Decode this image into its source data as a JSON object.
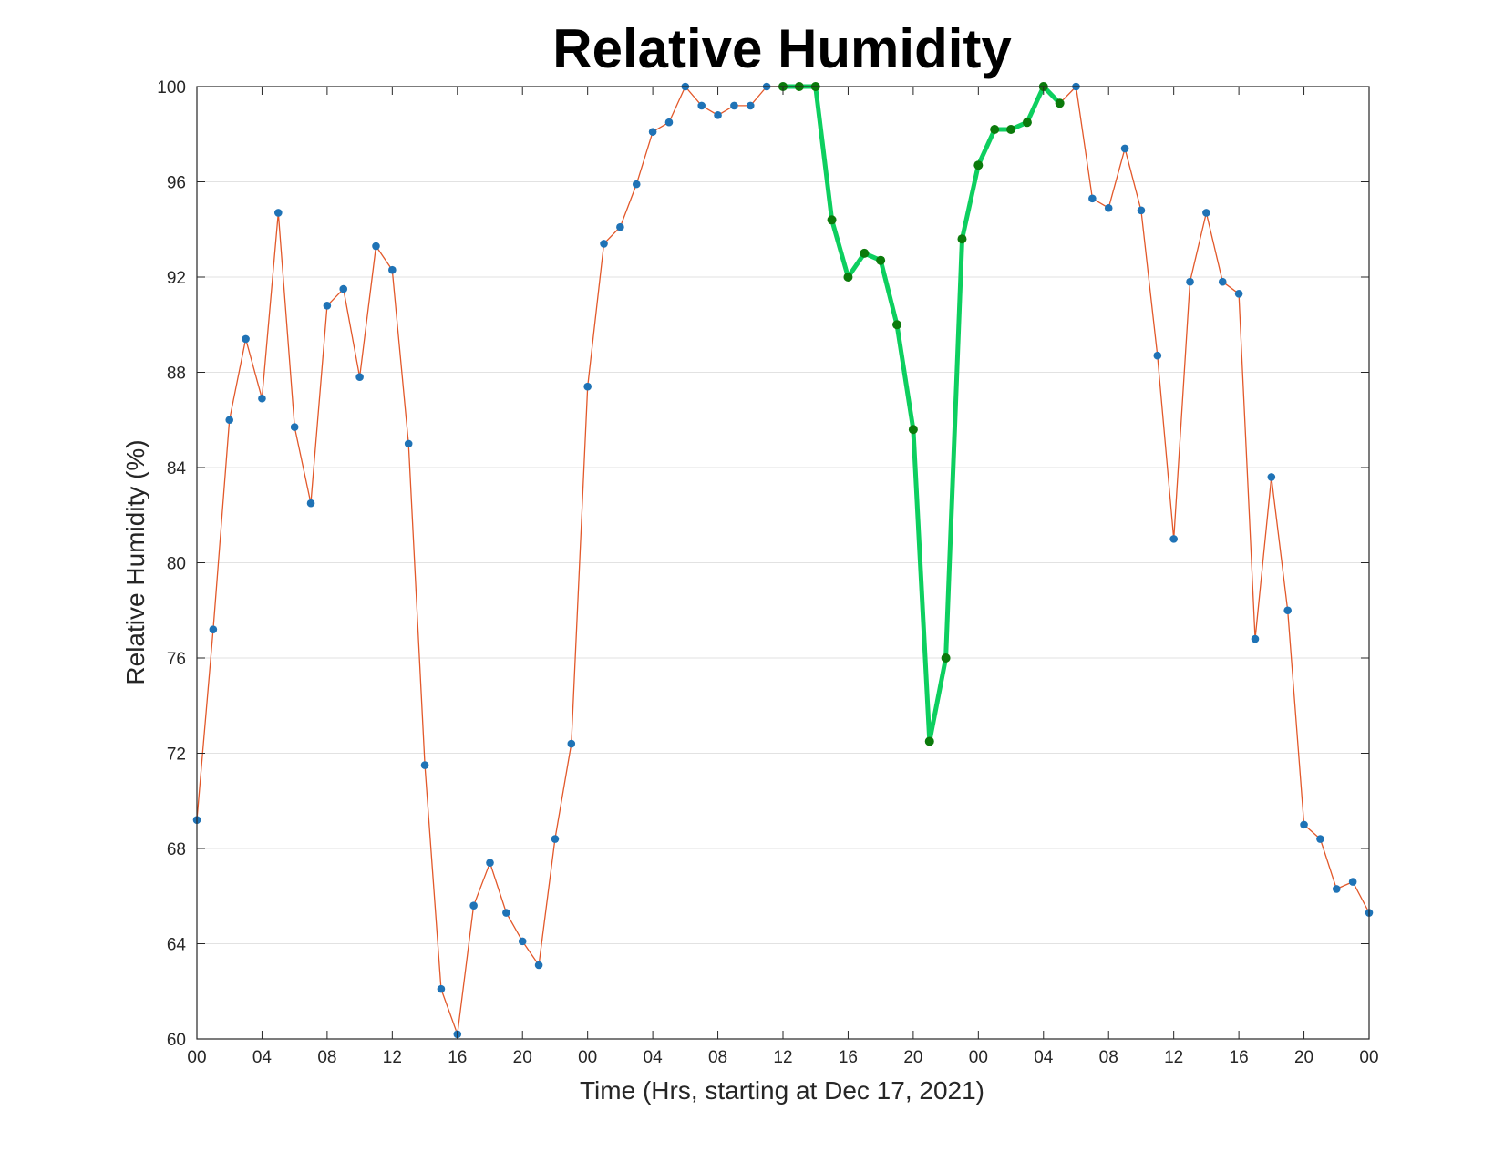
{
  "chart_data": {
    "type": "line",
    "title": "Relative Humidity",
    "xlabel": "Time (Hrs, starting at Dec 17, 2021)",
    "ylabel": "Relative Humidity (%)",
    "xlim": [
      0,
      72
    ],
    "ylim": [
      60,
      100
    ],
    "grid": "y",
    "x_tick_labels": [
      "00",
      "04",
      "08",
      "12",
      "16",
      "20",
      "00",
      "04",
      "08",
      "12",
      "16",
      "20",
      "00",
      "04",
      "08",
      "12",
      "16",
      "20",
      "00"
    ],
    "y_ticks": [
      60,
      64,
      68,
      72,
      76,
      80,
      84,
      88,
      92,
      96,
      100
    ],
    "x_hours": [
      0,
      1,
      2,
      3,
      4,
      5,
      6,
      7,
      8,
      9,
      10,
      11,
      12,
      13,
      14,
      15,
      16,
      17,
      18,
      19,
      20,
      21,
      22,
      23,
      24,
      25,
      26,
      27,
      28,
      29,
      30,
      31,
      32,
      33,
      34,
      35,
      36,
      37,
      38,
      39,
      40,
      41,
      42,
      43,
      44,
      45,
      46,
      47,
      48,
      49,
      50,
      51,
      52,
      53,
      54,
      55,
      56,
      57,
      58,
      59,
      60,
      61,
      62,
      63,
      64,
      65,
      66,
      67,
      68,
      69,
      70,
      71,
      72
    ],
    "series": [
      {
        "values": [
          69.2,
          77.2,
          86.0,
          89.4,
          86.9,
          94.7,
          85.7,
          82.5,
          90.8,
          91.5,
          87.8,
          93.3,
          92.3,
          85.0,
          71.5,
          62.1,
          60.2,
          65.6,
          67.4,
          65.3,
          64.1,
          63.1,
          68.4,
          72.4,
          87.4,
          93.4,
          94.1,
          95.9,
          98.1,
          98.5,
          100,
          99.2,
          98.8,
          99.2,
          99.2,
          100,
          100,
          100,
          100,
          94.4,
          92.0,
          93.0,
          92.7,
          90.0,
          85.6,
          72.5,
          76.0,
          93.6,
          96.7,
          98.2,
          98.2,
          98.5,
          100,
          99.3,
          100,
          95.3,
          94.9,
          97.4,
          94.8,
          88.7,
          81.0,
          91.8,
          94.7,
          91.8,
          91.3,
          76.8,
          83.6,
          78.0,
          69.0,
          68.4,
          66.3,
          66.6,
          65.3
        ],
        "color": "#e2582a",
        "marker_color": "#1f73b6"
      },
      {
        "x_start": 36,
        "values": [
          100,
          100,
          100,
          94.4,
          92.0,
          93.0,
          92.7,
          90.0,
          85.6,
          72.5,
          76.0,
          93.6,
          96.7,
          98.2,
          98.2,
          98.5,
          100,
          99.3
        ],
        "color": "#0dcf5f",
        "marker_color": "#0b7a0b"
      }
    ]
  }
}
